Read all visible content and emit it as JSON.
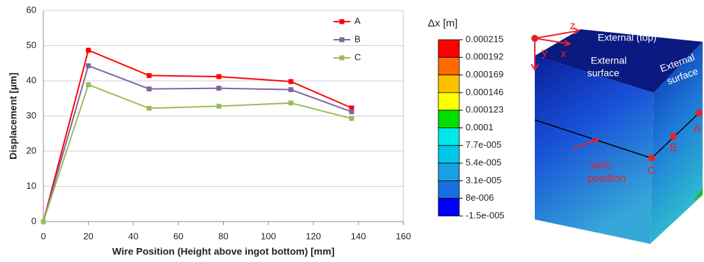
{
  "chart_data": {
    "type": "line",
    "x": [
      0,
      20,
      47,
      78,
      110,
      137
    ],
    "series": [
      {
        "name": "A",
        "color": "#ff0000",
        "values": [
          0,
          48.7,
          41.5,
          41.2,
          39.8,
          32.3
        ]
      },
      {
        "name": "B",
        "color": "#8064a2",
        "values": [
          0,
          44.3,
          37.7,
          37.9,
          37.5,
          31.2
        ]
      },
      {
        "name": "C",
        "color": "#9bbb59",
        "values": [
          0,
          38.9,
          32.2,
          32.8,
          33.7,
          29.3
        ]
      }
    ],
    "xlabel": "Wire Position (Height above ingot bottom) [mm]",
    "ylabel": "Displacement [µm]",
    "xlim": [
      0,
      160
    ],
    "xticks": [
      0,
      20,
      40,
      60,
      80,
      100,
      120,
      140,
      160
    ],
    "ylim": [
      0,
      60
    ],
    "yticks": [
      0,
      10,
      20,
      30,
      40,
      50,
      60
    ],
    "grid": true,
    "legend": "top-right"
  },
  "colorbar": {
    "title": "Δx [m]",
    "labels": [
      "0.000215",
      "0.000192",
      "0.000169",
      "0.000146",
      "0.000123",
      "0.0001",
      "7.7e-005",
      "5.4e-005",
      "3.1e-005",
      "8e-006",
      "-1.5e-005"
    ],
    "colors": [
      "#ff0000",
      "#ff6a00",
      "#ffc000",
      "#ffff00",
      "#00e000",
      "#00e8e8",
      "#00c8e8",
      "#1aa0e0",
      "#1870e0",
      "#0000ff"
    ]
  },
  "figure": {
    "top_label": "External (top)",
    "front_label": [
      "External",
      "surface"
    ],
    "side_label": [
      "External",
      "surface"
    ],
    "wire_label": [
      "wire",
      "position"
    ],
    "points": [
      "A",
      "B",
      "C"
    ],
    "axes": [
      "x",
      "y",
      "z"
    ]
  }
}
